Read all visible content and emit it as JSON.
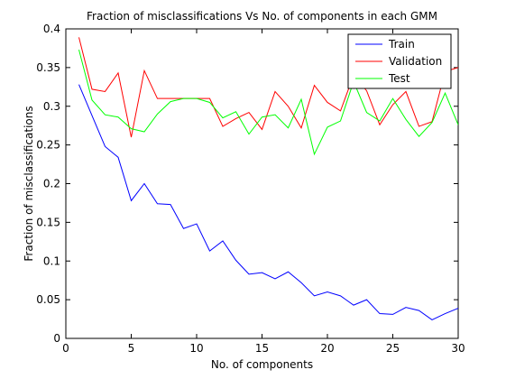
{
  "chart_data": {
    "type": "line",
    "title": "Fraction of misclassifications Vs No. of components in each GMM",
    "xlabel": "No. of components",
    "ylabel": "Fraction of misclassifications",
    "xlim": [
      0,
      30
    ],
    "ylim": [
      0,
      0.4
    ],
    "xticks": [
      0,
      5,
      10,
      15,
      20,
      25,
      30
    ],
    "yticks": [
      0,
      0.05,
      0.1,
      0.15,
      0.2,
      0.25,
      0.3,
      0.35,
      0.4
    ],
    "ytick_labels": [
      "0",
      "0.05",
      "0.1",
      "0.15",
      "0.2",
      "0.25",
      "0.3",
      "0.35",
      "0.4"
    ],
    "grid": false,
    "legend": "top-right",
    "x": [
      1,
      2,
      3,
      4,
      5,
      6,
      7,
      8,
      9,
      10,
      11,
      12,
      13,
      14,
      15,
      16,
      17,
      18,
      19,
      20,
      21,
      22,
      23,
      24,
      25,
      26,
      27,
      28,
      29,
      30
    ],
    "series": [
      {
        "name": "Train",
        "color": "#0000ff",
        "values": [
          0.328,
          0.288,
          0.248,
          0.234,
          0.178,
          0.2,
          0.174,
          0.173,
          0.142,
          0.148,
          0.113,
          0.126,
          0.101,
          0.083,
          0.085,
          0.077,
          0.086,
          0.072,
          0.055,
          0.06,
          0.055,
          0.043,
          0.05,
          0.032,
          0.031,
          0.04,
          0.036,
          0.024,
          0.032,
          0.039
        ]
      },
      {
        "name": "Validation",
        "color": "#ff0000",
        "values": [
          0.389,
          0.322,
          0.319,
          0.343,
          0.26,
          0.346,
          0.31,
          0.31,
          0.31,
          0.31,
          0.31,
          0.274,
          0.284,
          0.292,
          0.27,
          0.319,
          0.3,
          0.272,
          0.327,
          0.305,
          0.294,
          0.34,
          0.32,
          0.276,
          0.302,
          0.319,
          0.274,
          0.28,
          0.345,
          0.35
        ]
      },
      {
        "name": "Test",
        "color": "#00ff00",
        "values": [
          0.373,
          0.308,
          0.289,
          0.286,
          0.271,
          0.267,
          0.29,
          0.306,
          0.31,
          0.31,
          0.305,
          0.285,
          0.293,
          0.264,
          0.286,
          0.289,
          0.272,
          0.309,
          0.238,
          0.273,
          0.281,
          0.332,
          0.292,
          0.281,
          0.31,
          0.283,
          0.261,
          0.279,
          0.317,
          0.276
        ]
      }
    ]
  }
}
